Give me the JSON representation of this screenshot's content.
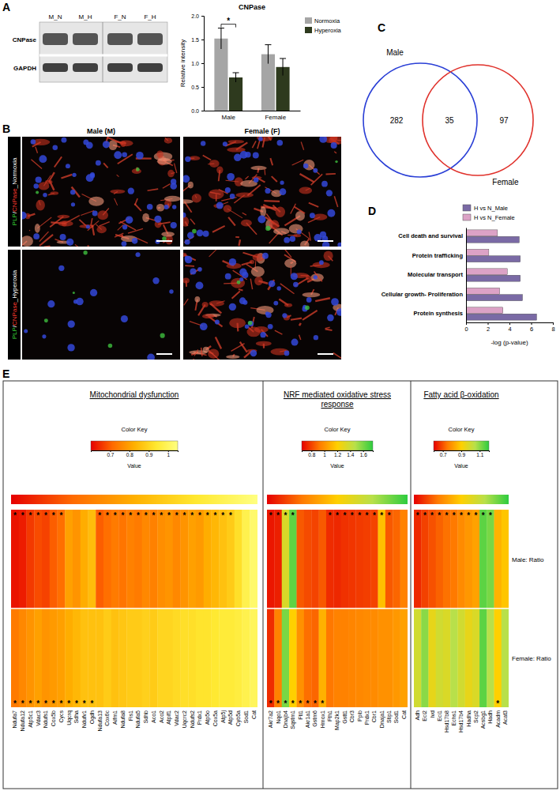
{
  "chart_data": [
    {
      "type": "blot",
      "panel": "A",
      "lanes": [
        "M_N",
        "M_H",
        "F_N",
        "F_H"
      ],
      "proteins": [
        "CNPase",
        "GAPDH"
      ]
    },
    {
      "type": "bar",
      "title": "CNPase",
      "y_label": "Relative intensity",
      "categories": [
        "Male",
        "Female"
      ],
      "series": [
        {
          "name": "Normoxia",
          "color": "#a5a5a5",
          "values": [
            1.52,
            1.19
          ],
          "errors": [
            0.22,
            0.2
          ]
        },
        {
          "name": "Hyperoxia",
          "color": "#2e3a1e",
          "values": [
            0.7,
            0.92
          ],
          "errors": [
            0.1,
            0.18
          ]
        }
      ],
      "ylim": [
        0,
        2
      ],
      "yticks": [
        {
          "value": 0,
          "label": "0.0"
        },
        {
          "value": 0.5,
          "label": "0.5"
        },
        {
          "value": 1,
          "label": "1.0"
        },
        {
          "value": 1.5,
          "label": "1.5"
        },
        {
          "value": 2,
          "label": "2.0"
        }
      ],
      "legend": "top-right",
      "annotations": [
        {
          "text": "*",
          "category": "Male"
        }
      ]
    },
    {
      "type": "image",
      "panel": "B",
      "columns": [
        "Male (M)",
        "Female (F)"
      ],
      "rows": [
        "PLP/CNPase_Normoxia",
        "PLP/CNPase_Hyperoxia"
      ]
    },
    {
      "type": "venn",
      "panel": "C",
      "sets": [
        {
          "name": "Male",
          "color": "#2a3fd6",
          "only": 282
        },
        {
          "name": "Female",
          "color": "#e0312b",
          "only": 97
        }
      ],
      "intersection": 35
    },
    {
      "type": "bar",
      "panel": "D",
      "orientation": "horizontal",
      "categories": [
        "Cell death and survival",
        "Protein trafficking",
        "Molecular transport",
        "Cellular growth- Proliferation",
        "Protein synthesis"
      ],
      "series": [
        {
          "name": "H vs N_Male",
          "color": "#7a6aa5",
          "values": [
            4.9,
            5.0,
            5.0,
            5.2,
            6.5
          ]
        },
        {
          "name": "H vs N_Female",
          "color": "#dca2c6",
          "values": [
            2.9,
            2.1,
            3.8,
            3.1,
            3.4
          ]
        }
      ],
      "xlim": [
        0,
        8
      ],
      "xticks": [
        0,
        2,
        4,
        6,
        8
      ],
      "x_label": "-log (p-value)",
      "legend": "top"
    },
    {
      "type": "heatmap",
      "panel": "E",
      "title": "Mitochondrial dysfunction",
      "genes": [
        "Ndufa7",
        "Ndufa12",
        "Atp5c1",
        "Vdac3",
        "Ndufs1",
        "Cox5b",
        "Cycs",
        "Uqcrq",
        "Sdha",
        "Ndufv1",
        "Ogdh",
        "Ndufa13",
        "Cox6c",
        "Aifm1",
        "Ndufa8",
        "Fis1",
        "Ndufa5",
        "Sdhb",
        "Aco1",
        "Aco2",
        "Atpif1",
        "Vdac2",
        "Uqcrc2",
        "Ndufs2",
        "Prdx1",
        "Atp5o",
        "Cox5a",
        "Atp5j",
        "Atp5d",
        "Cyb5a",
        "Sod1",
        "Cat"
      ],
      "values": [
        [
          0.62,
          0.63,
          0.66,
          0.68,
          0.67,
          0.7,
          0.72,
          0.8,
          0.78,
          0.82,
          0.85,
          0.7,
          0.72,
          0.74,
          0.73,
          0.75,
          0.74,
          0.76,
          0.75,
          0.77,
          0.78,
          0.76,
          0.78,
          0.8,
          0.79,
          0.82,
          0.84,
          0.86,
          0.88,
          0.92,
          0.98,
          1.02
        ],
        [
          0.74,
          0.76,
          0.78,
          0.8,
          0.78,
          0.79,
          0.8,
          0.82,
          0.84,
          0.86,
          0.86,
          0.86,
          0.88,
          0.86,
          0.87,
          0.88,
          0.88,
          0.89,
          0.88,
          0.9,
          0.9,
          0.91,
          0.92,
          0.92,
          0.93,
          0.93,
          0.94,
          0.95,
          0.95,
          0.96,
          0.98,
          1
        ]
      ],
      "significant": [
        [
          true,
          true,
          true,
          true,
          true,
          true,
          true,
          false,
          false,
          false,
          false,
          true,
          true,
          true,
          true,
          true,
          true,
          true,
          true,
          true,
          true,
          true,
          true,
          true,
          true,
          true,
          true,
          true,
          true,
          false,
          false,
          false
        ],
        [
          true,
          true,
          true,
          true,
          true,
          true,
          true,
          true,
          true,
          true,
          true,
          false,
          false,
          false,
          false,
          false,
          false,
          false,
          false,
          false,
          false,
          false,
          false,
          false,
          false,
          false,
          false,
          false,
          false,
          false,
          false,
          false
        ]
      ],
      "significance_label": "*",
      "colorbar": {
        "title": "Color Key",
        "label": "Value",
        "range": [
          0.6,
          1.05
        ],
        "ticks": [
          0.7,
          0.8,
          0.9,
          1
        ],
        "colors": [
          "#e60000",
          "#ff6a00",
          "#ffb000",
          "#ffe830",
          "#ffff80"
        ]
      }
    },
    {
      "type": "heatmap",
      "title": "NRF mediated oxidative stress response",
      "genes": [
        "Akr7a2",
        "Nqo1",
        "Dnajb4",
        "Sqstm1",
        "Ftl1",
        "Akr1a1",
        "Gstm6",
        "Hmox1",
        "Fth1",
        "Map2k1",
        "Gstt1",
        "Cbr3",
        "Ppib",
        "Prdx1",
        "Cbr1",
        "Dnaja1",
        "Stip1",
        "Sod1",
        "Cat"
      ],
      "values": [
        [
          0.7,
          0.72,
          1.35,
          1.65,
          0.85,
          0.82,
          0.8,
          0.85,
          0.75,
          0.74,
          0.76,
          0.77,
          0.78,
          0.79,
          0.8,
          1.15,
          0.85,
          0.88,
          0.95
        ],
        [
          0.75,
          0.95,
          1.6,
          1.2,
          1,
          0.9,
          0.88,
          1.1,
          0.92,
          0.95,
          0.95,
          0.96,
          0.97,
          0.98,
          0.98,
          1,
          1,
          1.02,
          1.05
        ]
      ],
      "significant": [
        [
          true,
          true,
          true,
          true,
          false,
          false,
          false,
          false,
          true,
          true,
          true,
          true,
          true,
          true,
          true,
          true,
          true,
          false,
          false
        ],
        [
          true,
          true,
          true,
          true,
          true,
          true,
          true,
          true,
          false,
          false,
          false,
          false,
          false,
          false,
          false,
          false,
          false,
          false,
          false
        ]
      ],
      "significance_label": "*",
      "colorbar": {
        "title": "Color Key",
        "label": "Value",
        "range": [
          0.65,
          1.75
        ],
        "ticks": [
          0.8,
          1,
          1.2,
          1.4,
          1.6
        ],
        "colors": [
          "#e60000",
          "#ff7a00",
          "#ffd000",
          "#b8e04a",
          "#2ecc40"
        ]
      }
    },
    {
      "type": "heatmap",
      "title": "Fatty acid β-oxidation",
      "genes": [
        "Adh",
        "Eci2",
        "Ivd",
        "Eci1",
        "Hsd17b8",
        "Echs1",
        "Hsd17b4",
        "Hadha",
        "Scp2",
        "Acsbg1",
        "Hadh",
        "Acadm",
        "Acat3"
      ],
      "rows": [
        "Male: Ratio",
        "Female: Ratio"
      ],
      "values": [
        [
          0.65,
          0.68,
          0.7,
          0.72,
          0.74,
          0.75,
          0.78,
          0.8,
          0.82,
          1.15,
          1.12,
          0.85,
          0.88
        ],
        [
          1,
          1.1,
          0.95,
          1,
          0.98,
          1.05,
          1,
          0.95,
          0.98,
          1.15,
          1.05,
          0.9,
          1.05
        ]
      ],
      "significant": [
        [
          true,
          true,
          true,
          true,
          true,
          true,
          true,
          true,
          true,
          true,
          true,
          false,
          false
        ],
        [
          false,
          false,
          false,
          false,
          false,
          false,
          false,
          false,
          false,
          false,
          false,
          true,
          false
        ]
      ],
      "significance_label": "*",
      "colorbar": {
        "title": "Color Key",
        "label": "Value",
        "range": [
          0.6,
          1.2
        ],
        "ticks": [
          0.7,
          0.9,
          1.1
        ],
        "colors": [
          "#e60000",
          "#ff7a00",
          "#ffd000",
          "#b8e04a",
          "#2ecc40"
        ]
      }
    }
  ]
}
